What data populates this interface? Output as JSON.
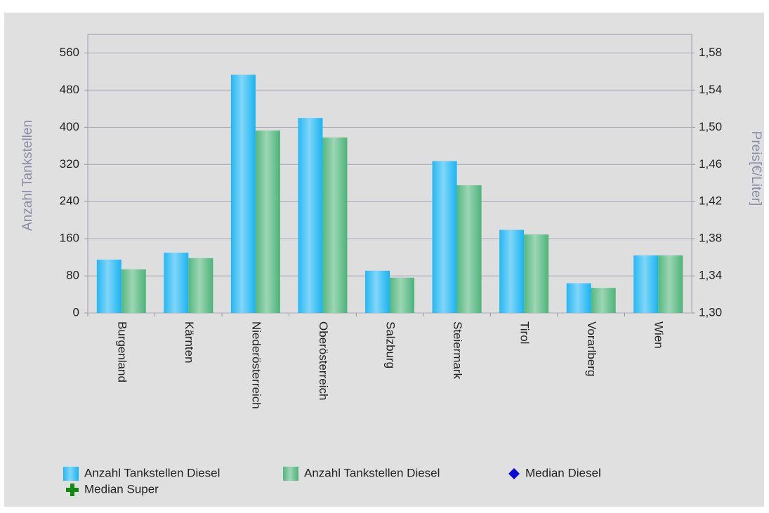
{
  "chart_data": {
    "type": "bar",
    "y_label": "Anzahl Tankstellen",
    "y2_label": "Preis[€/Liter]",
    "categories": [
      "Burgenland",
      "Kärnten",
      "Niederösterreich",
      "Oberösterreich",
      "Salzburg",
      "Steiermark",
      "Tirol",
      "Vorarlberg",
      "Wien"
    ],
    "series": [
      {
        "name": "Anzahl Tankstellen Diesel",
        "color": "#1ab4f2",
        "values": [
          115,
          130,
          513,
          420,
          91,
          327,
          179,
          64,
          124
        ]
      },
      {
        "name": "Anzahl Tankstellen Diesel",
        "color": "#4cb478",
        "values": [
          94,
          118,
          393,
          378,
          76,
          275,
          169,
          54,
          124
        ]
      },
      {
        "name": "Median Diesel",
        "color": "#0a0ad8",
        "marker": "diamond",
        "axis": "y2",
        "values": [
          null,
          null,
          null,
          null,
          null,
          null,
          null,
          null,
          null
        ]
      },
      {
        "name": "Median Super",
        "color": "#118a11",
        "marker": "cross",
        "axis": "y2",
        "values": [
          null,
          null,
          null,
          null,
          null,
          null,
          null,
          null,
          null
        ]
      }
    ],
    "ylim": [
      0,
      600
    ],
    "yticks": [
      0,
      80,
      160,
      240,
      320,
      400,
      480,
      560
    ],
    "y2lim": [
      1.3,
      1.6
    ],
    "y2ticks": [
      {
        "value": 1.3,
        "label": "1,30"
      },
      {
        "value": 1.34,
        "label": "1,34"
      },
      {
        "value": 1.38,
        "label": "1,38"
      },
      {
        "value": 1.42,
        "label": "1,42"
      },
      {
        "value": 1.46,
        "label": "1,46"
      },
      {
        "value": 1.5,
        "label": "1,50"
      },
      {
        "value": 1.54,
        "label": "1,54"
      },
      {
        "value": 1.58,
        "label": "1,58"
      }
    ],
    "grid": true
  }
}
